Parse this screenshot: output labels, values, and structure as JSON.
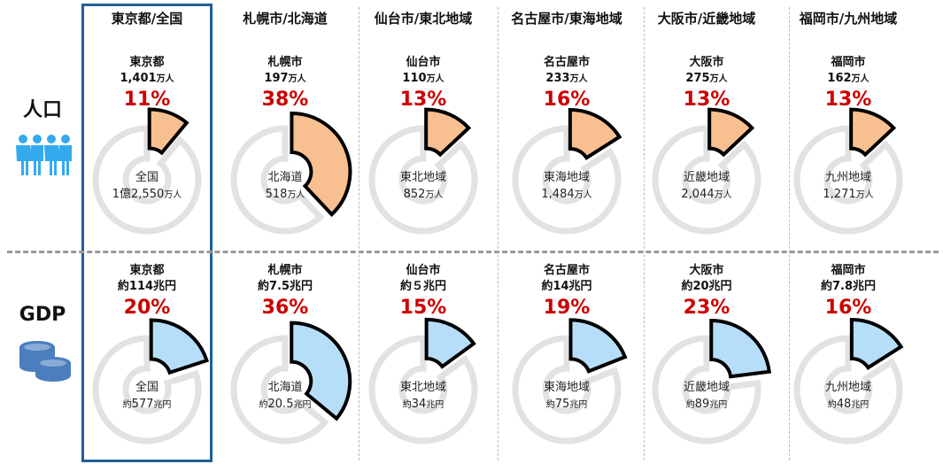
{
  "row_labels": {
    "population": "人口",
    "gdp": "GDP"
  },
  "icons": {
    "population": "people-icon",
    "gdp": "coins-icon"
  },
  "colors": {
    "population_fill": "#f8c090",
    "gdp_fill": "#b6def8",
    "accent": "#cc0000",
    "highlight_border": "#1f5f99",
    "ring": "#e2e2e2",
    "people_icon": "#33aaee",
    "coins_icon": "#4a7ebf"
  },
  "chart_data": {
    "type": "pie",
    "columns": [
      {
        "header": "東京都/全国",
        "population": {
          "city": "東京都",
          "city_value": "1,401",
          "city_unit": "万人",
          "percent": 11,
          "percent_label": "11%",
          "region": "全国",
          "region_value": "1億2,550",
          "region_unit": "万人"
        },
        "gdp": {
          "city": "東京都",
          "city_value": "約114兆円",
          "percent": 20,
          "percent_label": "20%",
          "region": "全国",
          "region_prefix": "約",
          "region_value": "577",
          "region_unit": "兆円"
        }
      },
      {
        "header": "札幌市/北海道",
        "population": {
          "city": "札幌市",
          "city_value": "197",
          "city_unit": "万人",
          "percent": 38,
          "percent_label": "38%",
          "region": "北海道",
          "region_value": "518",
          "region_unit": "万人"
        },
        "gdp": {
          "city": "札幌市",
          "city_value": "約7.5兆円",
          "percent": 36,
          "percent_label": "36%",
          "region": "北海道",
          "region_prefix": "約",
          "region_value": "20.5",
          "region_unit": "兆円"
        }
      },
      {
        "header": "仙台市/東北地域",
        "population": {
          "city": "仙台市",
          "city_value": "110",
          "city_unit": "万人",
          "percent": 13,
          "percent_label": "13%",
          "region": "東北地域",
          "region_value": "852",
          "region_unit": "万人"
        },
        "gdp": {
          "city": "仙台市",
          "city_value": "約５兆円",
          "percent": 15,
          "percent_label": "15%",
          "region": "東北地域",
          "region_prefix": "約",
          "region_value": "34",
          "region_unit": "兆円"
        }
      },
      {
        "header": "名古屋市/東海地域",
        "population": {
          "city": "名古屋市",
          "city_value": "233",
          "city_unit": "万人",
          "percent": 16,
          "percent_label": "16%",
          "region": "東海地域",
          "region_value": "1,484",
          "region_unit": "万人"
        },
        "gdp": {
          "city": "名古屋市",
          "city_value": "約14兆円",
          "percent": 19,
          "percent_label": "19%",
          "region": "東海地域",
          "region_prefix": "約",
          "region_value": "75",
          "region_unit": "兆円"
        }
      },
      {
        "header": "大阪市/近畿地域",
        "population": {
          "city": "大阪市",
          "city_value": "275",
          "city_unit": "万人",
          "percent": 13,
          "percent_label": "13%",
          "region": "近畿地域",
          "region_value": "2,044",
          "region_unit": "万人"
        },
        "gdp": {
          "city": "大阪市",
          "city_value": "約20兆円",
          "percent": 23,
          "percent_label": "23%",
          "region": "近畿地域",
          "region_prefix": "約",
          "region_value": "89",
          "region_unit": "兆円"
        }
      },
      {
        "header": "福岡市/九州地域",
        "population": {
          "city": "福岡市",
          "city_value": "162",
          "city_unit": "万人",
          "percent": 13,
          "percent_label": "13%",
          "region": "九州地域",
          "region_value": "1,271",
          "region_unit": "万人"
        },
        "gdp": {
          "city": "福岡市",
          "city_value": "約7.8兆円",
          "percent": 16,
          "percent_label": "16%",
          "region": "九州地域",
          "region_prefix": "約",
          "region_value": "48",
          "region_unit": "兆円"
        }
      }
    ]
  }
}
